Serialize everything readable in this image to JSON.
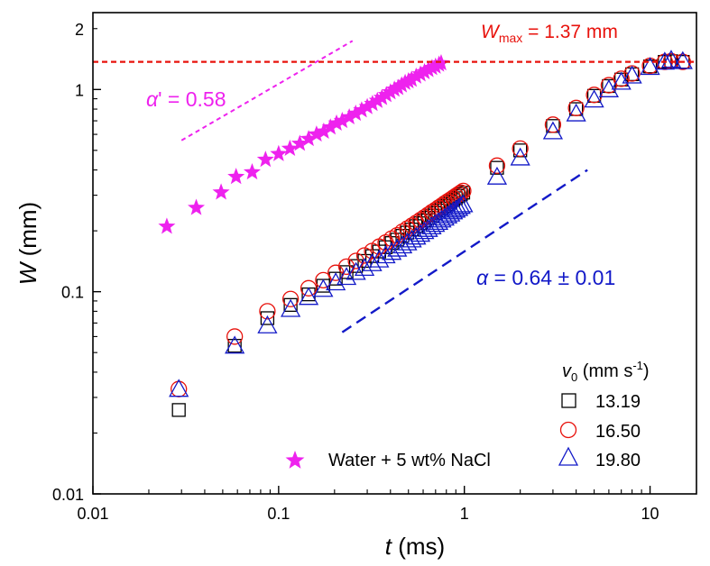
{
  "chart_data": {
    "type": "scatter",
    "title": "",
    "xscale": "log",
    "yscale": "log",
    "xlim": [
      0.01,
      17.78
    ],
    "ylim": [
      0.01,
      2.4
    ],
    "xlabel": {
      "main": "t",
      "unit": " (ms)"
    },
    "ylabel": {
      "main": "W",
      "unit": " (mm)"
    },
    "x_ticks": [
      {
        "value": 0.01,
        "label": "0.01"
      },
      {
        "value": 0.1,
        "label": "0.1"
      },
      {
        "value": 1,
        "label": "1"
      },
      {
        "value": 10,
        "label": "10"
      }
    ],
    "y_ticks": [
      {
        "value": 0.01,
        "label": "0.01"
      },
      {
        "value": 0.1,
        "label": "0.1"
      },
      {
        "value": 1,
        "label": "1"
      },
      {
        "value": 2,
        "label": "2"
      }
    ],
    "legend": {
      "placement": "bottom-right",
      "title_symbol": "v",
      "title_sub": "0",
      "title_unit": " (mm s",
      "title_sup": "-1",
      "title_close": ")",
      "entries": [
        "13.19",
        "16.50",
        "19.80"
      ]
    },
    "series": [
      {
        "name": "13.19",
        "marker": "square",
        "color": "#000000",
        "x": [
          0.029,
          0.058,
          0.087,
          0.116,
          0.145,
          0.174,
          0.203,
          0.232,
          0.261,
          0.29,
          0.319,
          0.348,
          0.377,
          0.406,
          0.435,
          0.464,
          0.493,
          0.522,
          0.551,
          0.58,
          0.609,
          0.638,
          0.667,
          0.696,
          0.725,
          0.754,
          0.783,
          0.812,
          0.841,
          0.87,
          0.899,
          0.928,
          0.957,
          0.986,
          1.5,
          2.0,
          3.0,
          4.0,
          5.0,
          6.0,
          7.0,
          8.0,
          10.0,
          12.0,
          13.0,
          15.0
        ],
        "y": [
          0.026,
          0.054,
          0.074,
          0.086,
          0.097,
          0.107,
          0.116,
          0.125,
          0.134,
          0.142,
          0.15,
          0.158,
          0.166,
          0.174,
          0.181,
          0.189,
          0.196,
          0.203,
          0.211,
          0.218,
          0.225,
          0.232,
          0.238,
          0.245,
          0.252,
          0.258,
          0.265,
          0.271,
          0.278,
          0.284,
          0.29,
          0.297,
          0.303,
          0.309,
          0.41,
          0.5,
          0.66,
          0.8,
          0.93,
          1.04,
          1.12,
          1.19,
          1.3,
          1.37,
          1.38,
          1.37
        ]
      },
      {
        "name": "16.50",
        "marker": "circle",
        "color": "#e8120c",
        "x": [
          0.029,
          0.058,
          0.087,
          0.116,
          0.145,
          0.174,
          0.203,
          0.232,
          0.261,
          0.29,
          0.319,
          0.348,
          0.377,
          0.406,
          0.435,
          0.464,
          0.493,
          0.522,
          0.551,
          0.58,
          0.609,
          0.638,
          0.667,
          0.696,
          0.725,
          0.754,
          0.783,
          0.812,
          0.841,
          0.87,
          0.899,
          0.928,
          0.957,
          0.986,
          1.5,
          2.0,
          3.0,
          4.0,
          5.0,
          6.0,
          7.0,
          8.0,
          10.0,
          12.0,
          13.0,
          15.0
        ],
        "y": [
          0.033,
          0.06,
          0.08,
          0.092,
          0.104,
          0.114,
          0.124,
          0.133,
          0.142,
          0.151,
          0.159,
          0.167,
          0.175,
          0.183,
          0.19,
          0.198,
          0.205,
          0.212,
          0.219,
          0.226,
          0.233,
          0.24,
          0.247,
          0.253,
          0.26,
          0.266,
          0.273,
          0.279,
          0.285,
          0.291,
          0.297,
          0.303,
          0.309,
          0.315,
          0.42,
          0.51,
          0.67,
          0.81,
          0.94,
          1.05,
          1.13,
          1.2,
          1.31,
          1.37,
          1.38,
          1.37
        ]
      },
      {
        "name": "19.80",
        "marker": "triangle",
        "color": "#1219c8",
        "x": [
          0.029,
          0.058,
          0.087,
          0.116,
          0.145,
          0.174,
          0.203,
          0.232,
          0.261,
          0.29,
          0.319,
          0.348,
          0.377,
          0.406,
          0.435,
          0.464,
          0.493,
          0.522,
          0.551,
          0.58,
          0.609,
          0.638,
          0.667,
          0.696,
          0.725,
          0.754,
          0.783,
          0.812,
          0.841,
          0.87,
          0.899,
          0.928,
          0.957,
          0.986,
          1.5,
          2.0,
          3.0,
          4.0,
          5.0,
          6.0,
          7.0,
          8.0,
          10.0,
          12.0,
          13.0,
          15.0
        ],
        "y": [
          0.033,
          0.054,
          0.068,
          0.082,
          0.094,
          0.103,
          0.111,
          0.118,
          0.125,
          0.131,
          0.138,
          0.144,
          0.151,
          0.157,
          0.163,
          0.169,
          0.175,
          0.181,
          0.187,
          0.193,
          0.199,
          0.204,
          0.21,
          0.216,
          0.221,
          0.227,
          0.232,
          0.238,
          0.243,
          0.249,
          0.254,
          0.259,
          0.265,
          0.27,
          0.37,
          0.46,
          0.62,
          0.76,
          0.89,
          1.0,
          1.09,
          1.17,
          1.29,
          1.37,
          1.4,
          1.38
        ]
      },
      {
        "name": "Water + 5 wt% NaCl",
        "marker": "star",
        "color": "#ee22ee",
        "x": [
          0.025,
          0.036,
          0.049,
          0.059,
          0.072,
          0.085,
          0.1,
          0.115,
          0.13,
          0.145,
          0.16,
          0.175,
          0.19,
          0.205,
          0.22,
          0.24,
          0.26,
          0.28,
          0.3,
          0.32,
          0.34,
          0.36,
          0.38,
          0.4,
          0.42,
          0.44,
          0.46,
          0.48,
          0.5,
          0.52,
          0.55,
          0.58,
          0.61,
          0.64,
          0.67,
          0.7,
          0.73,
          0.75
        ],
        "y": [
          0.21,
          0.26,
          0.31,
          0.37,
          0.39,
          0.45,
          0.48,
          0.51,
          0.54,
          0.57,
          0.6,
          0.62,
          0.65,
          0.68,
          0.7,
          0.73,
          0.76,
          0.79,
          0.82,
          0.85,
          0.88,
          0.91,
          0.94,
          0.97,
          1.0,
          1.02,
          1.05,
          1.08,
          1.1,
          1.12,
          1.16,
          1.19,
          1.22,
          1.25,
          1.28,
          1.3,
          1.33,
          1.35
        ]
      }
    ],
    "reference_lines": [
      {
        "name": "wmax-line",
        "y": 1.37,
        "color": "#e8120c"
      },
      {
        "name": "alpha-prime-line",
        "x": [
          0.03,
          0.25
        ],
        "y": [
          0.56,
          1.74
        ],
        "color": "#ee22ee"
      },
      {
        "name": "alpha-line",
        "x": [
          0.22,
          4.6
        ],
        "y": [
          0.063,
          0.4
        ],
        "color": "#1219c8"
      }
    ],
    "annotations": {
      "wmax": {
        "symbol": "W",
        "sub": "max",
        "value": " = 1.37 mm",
        "color": "#e8120c"
      },
      "alpha_prime": {
        "symbol": "α",
        "prime": "'",
        "value": " = 0.58",
        "color": "#ee22ee"
      },
      "alpha": {
        "symbol": "α",
        "value": " = 0.64 ± 0.01",
        "color": "#1219c8"
      }
    },
    "grid": false
  }
}
